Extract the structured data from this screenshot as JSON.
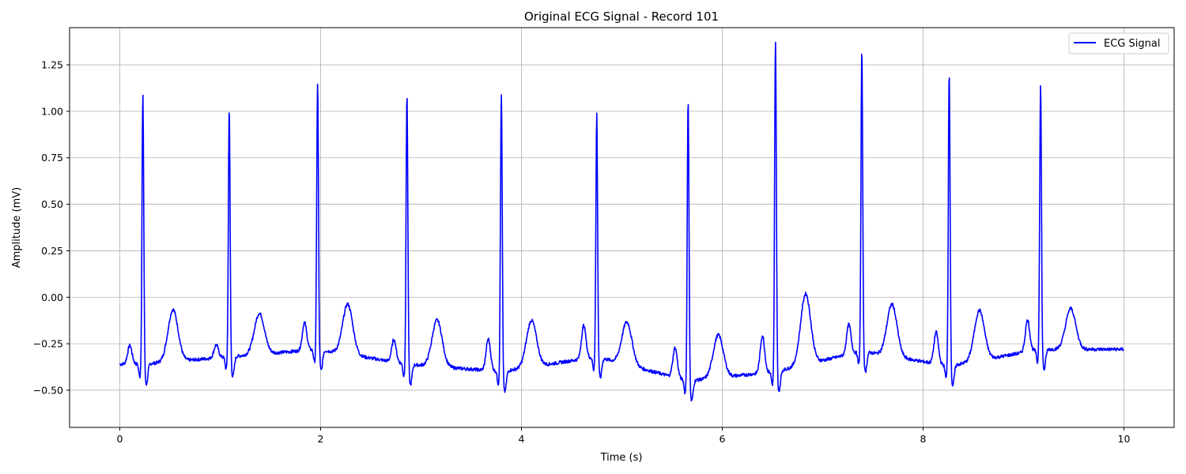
{
  "chart_data": {
    "type": "line",
    "title": "Original ECG Signal - Record 101",
    "xlabel": "Time (s)",
    "ylabel": "Amplitude (mV)",
    "xlim": [
      -0.5,
      10.5
    ],
    "ylim": [
      -0.7,
      1.45
    ],
    "x_ticks": [
      0,
      2,
      4,
      6,
      8,
      10
    ],
    "x_tick_labels": [
      "0",
      "2",
      "4",
      "6",
      "8",
      "10"
    ],
    "y_ticks": [
      -0.5,
      -0.25,
      0.0,
      0.25,
      0.5,
      0.75,
      1.0,
      1.25
    ],
    "y_tick_labels": [
      "−0.50",
      "−0.25",
      "0.00",
      "0.25",
      "0.50",
      "0.75",
      "1.00",
      "1.25"
    ],
    "grid": true,
    "legend_position": "top-right",
    "series": [
      {
        "name": "ECG Signal",
        "color": "#0000ff",
        "beats": [
          {
            "t": 0.23,
            "r": 1.09,
            "b": -0.36,
            "p": 0.1,
            "tw": 0.28
          },
          {
            "t": 1.09,
            "r": 1.02,
            "b": -0.32,
            "p": 0.07,
            "tw": 0.22
          },
          {
            "t": 1.97,
            "r": 1.16,
            "b": -0.28,
            "p": 0.15,
            "tw": 0.27
          },
          {
            "t": 2.86,
            "r": 1.1,
            "b": -0.36,
            "p": 0.12,
            "tw": 0.25
          },
          {
            "t": 3.8,
            "r": 1.1,
            "b": -0.4,
            "p": 0.17,
            "tw": 0.25
          },
          {
            "t": 4.75,
            "r": 1.0,
            "b": -0.32,
            "p": 0.18,
            "tw": 0.23
          },
          {
            "t": 5.66,
            "r": 1.06,
            "b": -0.45,
            "p": 0.16,
            "tw": 0.23
          },
          {
            "t": 6.53,
            "r": 1.38,
            "b": -0.4,
            "p": 0.2,
            "tw": 0.38
          },
          {
            "t": 7.39,
            "r": 1.33,
            "b": -0.29,
            "p": 0.16,
            "tw": 0.28
          },
          {
            "t": 8.26,
            "r": 1.22,
            "b": -0.37,
            "p": 0.17,
            "tw": 0.27
          },
          {
            "t": 9.17,
            "r": 1.15,
            "b": -0.28,
            "p": 0.17,
            "tw": 0.22
          }
        ]
      }
    ]
  }
}
